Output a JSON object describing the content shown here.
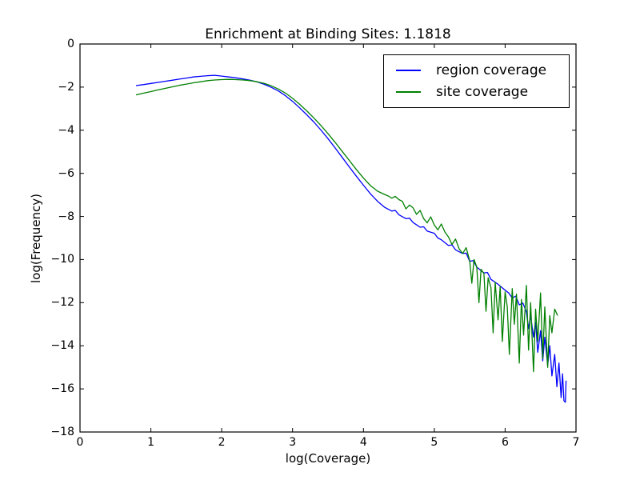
{
  "chart_data": {
    "type": "line",
    "title": "Enrichment at Binding Sites: 1.1818",
    "xlabel": "log(Coverage)",
    "ylabel": "log(Frequency)",
    "xlim": [
      0,
      7
    ],
    "ylim": [
      -18,
      0
    ],
    "grid": false,
    "legend_position": "upper right",
    "xticks": [
      0,
      1,
      2,
      3,
      4,
      5,
      6,
      7
    ],
    "xtick_labels": [
      "0",
      "1",
      "2",
      "3",
      "4",
      "5",
      "6",
      "7"
    ],
    "yticks": [
      0,
      -2,
      -4,
      -6,
      -8,
      -10,
      -12,
      -14,
      -16,
      -18
    ],
    "ytick_labels": [
      "0",
      "−2",
      "−4",
      "−6",
      "−8",
      "−10",
      "−12",
      "−14",
      "−16",
      "−18"
    ],
    "series": [
      {
        "name": "region coverage",
        "color": "#0000ff",
        "points": [
          [
            0.79,
            -1.93
          ],
          [
            0.9,
            -1.88
          ],
          [
            1.0,
            -1.83
          ],
          [
            1.1,
            -1.78
          ],
          [
            1.2,
            -1.73
          ],
          [
            1.3,
            -1.68
          ],
          [
            1.4,
            -1.63
          ],
          [
            1.5,
            -1.58
          ],
          [
            1.6,
            -1.53
          ],
          [
            1.7,
            -1.5
          ],
          [
            1.8,
            -1.47
          ],
          [
            1.9,
            -1.45
          ],
          [
            2.0,
            -1.49
          ],
          [
            2.1,
            -1.53
          ],
          [
            2.2,
            -1.57
          ],
          [
            2.3,
            -1.62
          ],
          [
            2.4,
            -1.68
          ],
          [
            2.5,
            -1.76
          ],
          [
            2.6,
            -1.87
          ],
          [
            2.7,
            -2.01
          ],
          [
            2.8,
            -2.18
          ],
          [
            2.9,
            -2.4
          ],
          [
            3.0,
            -2.66
          ],
          [
            3.1,
            -2.96
          ],
          [
            3.2,
            -3.28
          ],
          [
            3.3,
            -3.62
          ],
          [
            3.4,
            -3.99
          ],
          [
            3.5,
            -4.39
          ],
          [
            3.6,
            -4.82
          ],
          [
            3.7,
            -5.26
          ],
          [
            3.8,
            -5.7
          ],
          [
            3.9,
            -6.13
          ],
          [
            4.0,
            -6.55
          ],
          [
            4.1,
            -6.95
          ],
          [
            4.2,
            -7.3
          ],
          [
            4.3,
            -7.58
          ],
          [
            4.4,
            -7.75
          ],
          [
            4.45,
            -7.72
          ],
          [
            4.5,
            -7.92
          ],
          [
            4.6,
            -8.1
          ],
          [
            4.65,
            -8.08
          ],
          [
            4.7,
            -8.28
          ],
          [
            4.8,
            -8.5
          ],
          [
            4.85,
            -8.48
          ],
          [
            4.9,
            -8.68
          ],
          [
            5.0,
            -8.78
          ],
          [
            5.05,
            -9.0
          ],
          [
            5.1,
            -9.08
          ],
          [
            5.2,
            -9.35
          ],
          [
            5.25,
            -9.32
          ],
          [
            5.3,
            -9.55
          ],
          [
            5.4,
            -9.72
          ],
          [
            5.45,
            -9.7
          ],
          [
            5.5,
            -10.08
          ],
          [
            5.55,
            -10.05
          ],
          [
            5.6,
            -10.35
          ],
          [
            5.7,
            -10.62
          ],
          [
            5.75,
            -10.6
          ],
          [
            5.8,
            -10.92
          ],
          [
            5.9,
            -11.15
          ],
          [
            6.0,
            -11.42
          ],
          [
            6.05,
            -11.55
          ],
          [
            6.1,
            -11.78
          ],
          [
            6.15,
            -11.7
          ],
          [
            6.2,
            -12.1
          ],
          [
            6.25,
            -12.02
          ],
          [
            6.3,
            -12.42
          ],
          [
            6.33,
            -13.2
          ],
          [
            6.36,
            -12.6
          ],
          [
            6.4,
            -13.6
          ],
          [
            6.43,
            -12.9
          ],
          [
            6.46,
            -14.3
          ],
          [
            6.5,
            -13.3
          ],
          [
            6.53,
            -14.7
          ],
          [
            6.56,
            -13.6
          ],
          [
            6.6,
            -14.9
          ],
          [
            6.63,
            -14.0
          ],
          [
            6.66,
            -15.4
          ],
          [
            6.7,
            -14.4
          ],
          [
            6.73,
            -15.9
          ],
          [
            6.76,
            -14.8
          ],
          [
            6.79,
            -16.4
          ],
          [
            6.81,
            -15.3
          ],
          [
            6.83,
            -16.55
          ],
          [
            6.85,
            -16.62
          ],
          [
            6.86,
            -15.62
          ]
        ]
      },
      {
        "name": "site coverage",
        "color": "#008000",
        "points": [
          [
            0.79,
            -2.36
          ],
          [
            0.9,
            -2.28
          ],
          [
            1.0,
            -2.21
          ],
          [
            1.1,
            -2.13
          ],
          [
            1.2,
            -2.06
          ],
          [
            1.3,
            -1.99
          ],
          [
            1.4,
            -1.92
          ],
          [
            1.5,
            -1.86
          ],
          [
            1.6,
            -1.8
          ],
          [
            1.7,
            -1.75
          ],
          [
            1.8,
            -1.7
          ],
          [
            1.9,
            -1.67
          ],
          [
            2.0,
            -1.65
          ],
          [
            2.1,
            -1.64
          ],
          [
            2.2,
            -1.65
          ],
          [
            2.3,
            -1.67
          ],
          [
            2.4,
            -1.7
          ],
          [
            2.5,
            -1.75
          ],
          [
            2.6,
            -1.83
          ],
          [
            2.7,
            -1.94
          ],
          [
            2.8,
            -2.09
          ],
          [
            2.9,
            -2.28
          ],
          [
            3.0,
            -2.52
          ],
          [
            3.1,
            -2.8
          ],
          [
            3.2,
            -3.1
          ],
          [
            3.3,
            -3.43
          ],
          [
            3.4,
            -3.78
          ],
          [
            3.5,
            -4.16
          ],
          [
            3.6,
            -4.56
          ],
          [
            3.7,
            -4.98
          ],
          [
            3.8,
            -5.4
          ],
          [
            3.9,
            -5.82
          ],
          [
            4.0,
            -6.22
          ],
          [
            4.1,
            -6.57
          ],
          [
            4.2,
            -6.83
          ],
          [
            4.3,
            -6.98
          ],
          [
            4.35,
            -7.05
          ],
          [
            4.4,
            -7.15
          ],
          [
            4.45,
            -7.07
          ],
          [
            4.5,
            -7.22
          ],
          [
            4.55,
            -7.3
          ],
          [
            4.6,
            -7.65
          ],
          [
            4.65,
            -7.47
          ],
          [
            4.7,
            -7.6
          ],
          [
            4.75,
            -7.9
          ],
          [
            4.8,
            -7.72
          ],
          [
            4.85,
            -8.1
          ],
          [
            4.9,
            -8.3
          ],
          [
            4.95,
            -8.02
          ],
          [
            5.0,
            -8.4
          ],
          [
            5.05,
            -8.62
          ],
          [
            5.1,
            -8.35
          ],
          [
            5.15,
            -8.72
          ],
          [
            5.2,
            -8.95
          ],
          [
            5.25,
            -9.3
          ],
          [
            5.3,
            -9.05
          ],
          [
            5.35,
            -9.5
          ],
          [
            5.4,
            -9.72
          ],
          [
            5.45,
            -9.45
          ],
          [
            5.5,
            -10.05
          ],
          [
            5.53,
            -11.1
          ],
          [
            5.56,
            -10.0
          ],
          [
            5.6,
            -10.35
          ],
          [
            5.63,
            -12.0
          ],
          [
            5.66,
            -10.45
          ],
          [
            5.7,
            -10.65
          ],
          [
            5.73,
            -12.4
          ],
          [
            5.76,
            -10.85
          ],
          [
            5.8,
            -11.3
          ],
          [
            5.83,
            -13.4
          ],
          [
            5.86,
            -11.05
          ],
          [
            5.9,
            -12.8
          ],
          [
            5.93,
            -11.25
          ],
          [
            5.96,
            -13.8
          ],
          [
            6.0,
            -11.5
          ],
          [
            6.03,
            -12.2
          ],
          [
            6.06,
            -14.4
          ],
          [
            6.1,
            -11.35
          ],
          [
            6.13,
            -13.0
          ],
          [
            6.16,
            -11.6
          ],
          [
            6.2,
            -14.8
          ],
          [
            6.23,
            -11.85
          ],
          [
            6.26,
            -13.5
          ],
          [
            6.3,
            -11.2
          ],
          [
            6.33,
            -14.2
          ],
          [
            6.36,
            -12.0
          ],
          [
            6.4,
            -15.2
          ],
          [
            6.43,
            -12.3
          ],
          [
            6.46,
            -13.8
          ],
          [
            6.5,
            -11.55
          ],
          [
            6.53,
            -14.6
          ],
          [
            6.56,
            -12.2
          ],
          [
            6.6,
            -15.0
          ],
          [
            6.63,
            -12.6
          ],
          [
            6.66,
            -13.4
          ],
          [
            6.7,
            -12.3
          ],
          [
            6.74,
            -12.6
          ]
        ]
      }
    ]
  },
  "legend": {
    "items": [
      {
        "label": "region coverage"
      },
      {
        "label": "site coverage"
      }
    ]
  }
}
